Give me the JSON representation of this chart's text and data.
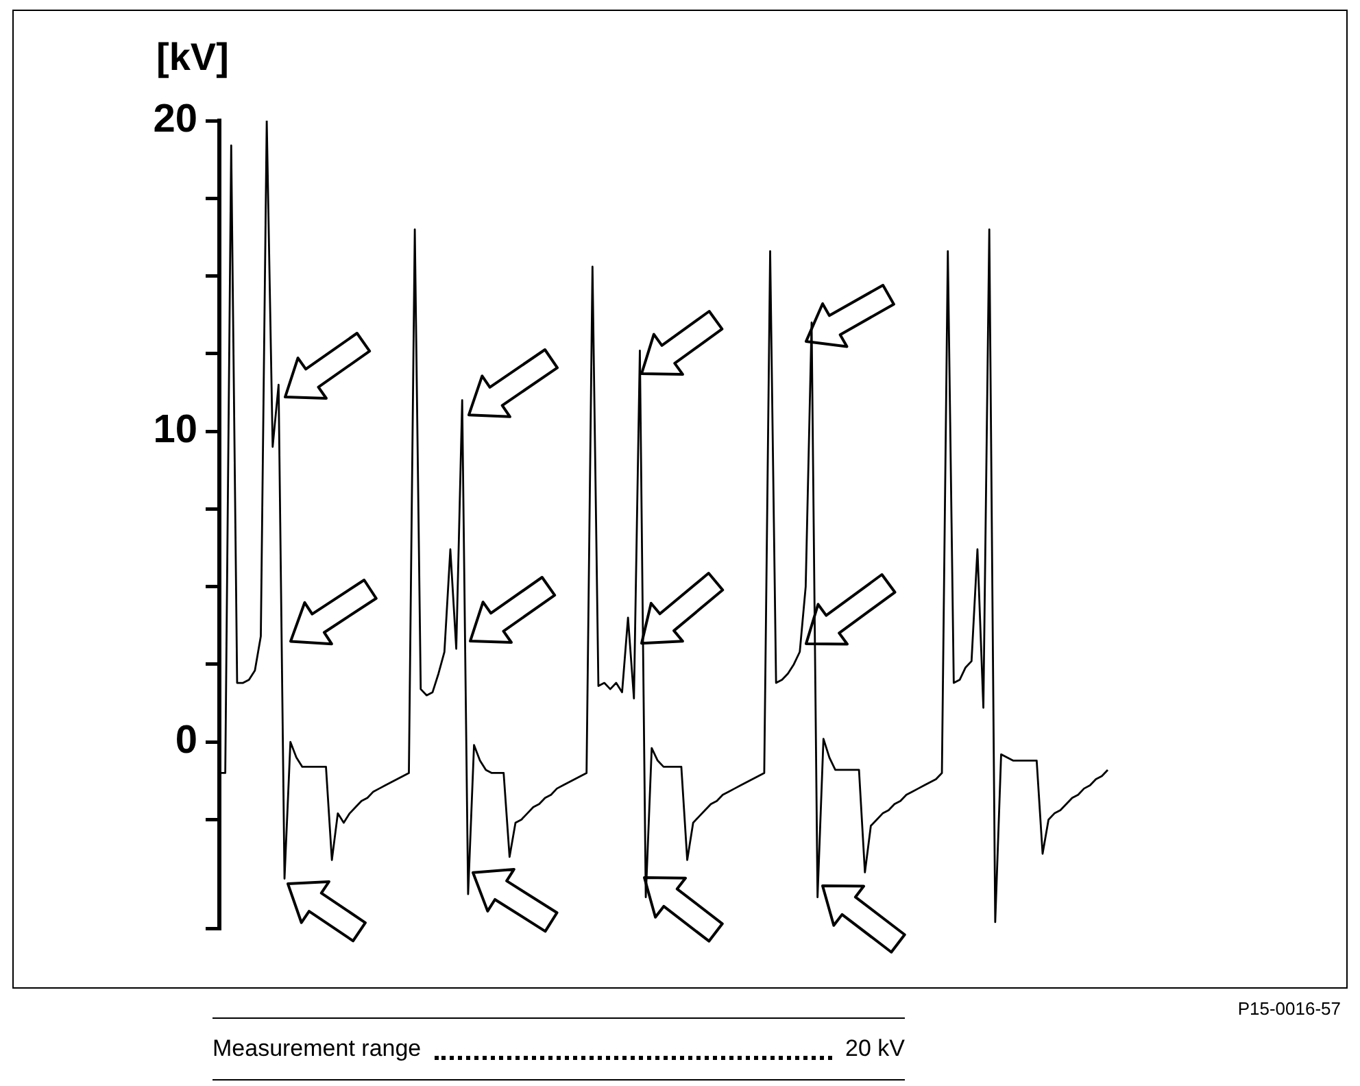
{
  "chart_data": {
    "type": "line",
    "ylabel": "[kV]",
    "categories": [
      null,
      null,
      null,
      null,
      null,
      null,
      null,
      null,
      null,
      null,
      null,
      null,
      null,
      null,
      null,
      null,
      null,
      null,
      null,
      null,
      null,
      null,
      null,
      null,
      null,
      null,
      null,
      null,
      null,
      null,
      null,
      null,
      null,
      null,
      null,
      null,
      null,
      null,
      null,
      null,
      null,
      null,
      null,
      null,
      null,
      null,
      null,
      null,
      null,
      null,
      null,
      null,
      null,
      null,
      null,
      null,
      null,
      null,
      null,
      null,
      null,
      null,
      null,
      null,
      null,
      null,
      null,
      null,
      null,
      null,
      null,
      null,
      null,
      null,
      null,
      null,
      null,
      null,
      null,
      null,
      null,
      null,
      null,
      null,
      null,
      null,
      null,
      null,
      null,
      null,
      null,
      null,
      null,
      null,
      null,
      null,
      null,
      null,
      null,
      null,
      null,
      null,
      null,
      null,
      null,
      null,
      null,
      null,
      null,
      null,
      null,
      null,
      null,
      null,
      null,
      null,
      null,
      null,
      null,
      null,
      null,
      null,
      null,
      null,
      null,
      null,
      null,
      null,
      null,
      null,
      null,
      null,
      null,
      null,
      null,
      null,
      null,
      null,
      null,
      null,
      null,
      null,
      null,
      null,
      null,
      null,
      null,
      null,
      null,
      null,
      null
    ],
    "series": [
      {
        "color": "#000000",
        "values": [
          -1.0,
          -1.0,
          19.2,
          1.9,
          1.9,
          2.0,
          2.3,
          3.4,
          20.0,
          9.5,
          11.5,
          -4.4,
          0.0,
          -0.5,
          -0.8,
          -0.8,
          -0.8,
          -0.8,
          -0.8,
          -3.8,
          -2.3,
          -2.6,
          -2.3,
          -2.1,
          -1.9,
          -1.8,
          -1.6,
          -1.5,
          -1.4,
          -1.3,
          -1.2,
          -1.1,
          -1.0,
          16.5,
          1.7,
          1.5,
          1.6,
          2.2,
          2.9,
          6.2,
          3.0,
          11.0,
          -4.9,
          -0.1,
          -0.6,
          -0.9,
          -1.0,
          -1.0,
          -1.0,
          -3.7,
          -2.6,
          -2.5,
          -2.3,
          -2.1,
          -2.0,
          -1.8,
          -1.7,
          -1.5,
          -1.4,
          -1.3,
          -1.2,
          -1.1,
          -1.0,
          15.3,
          1.8,
          1.9,
          1.7,
          1.9,
          1.6,
          4.0,
          1.4,
          12.6,
          -5.0,
          -0.2,
          -0.6,
          -0.8,
          -0.8,
          -0.8,
          -0.8,
          -3.8,
          -2.6,
          -2.4,
          -2.2,
          -2.0,
          -1.9,
          -1.7,
          -1.6,
          -1.5,
          -1.4,
          -1.3,
          -1.2,
          -1.1,
          -1.0,
          15.8,
          1.9,
          2.0,
          2.2,
          2.5,
          2.9,
          5.0,
          13.5,
          -5.0,
          0.1,
          -0.5,
          -0.9,
          -0.9,
          -0.9,
          -0.9,
          -0.9,
          -4.2,
          -2.7,
          -2.5,
          -2.3,
          -2.2,
          -2.0,
          -1.9,
          -1.7,
          -1.6,
          -1.5,
          -1.4,
          -1.3,
          -1.2,
          -1.0,
          15.8,
          1.9,
          2.0,
          2.4,
          2.6,
          6.2,
          1.1,
          16.5,
          -5.8,
          -0.4,
          -0.5,
          -0.6,
          -0.6,
          -0.6,
          -0.6,
          -0.6,
          -3.6,
          -2.5,
          -2.3,
          -2.2,
          -2.0,
          -1.8,
          -1.7,
          -1.5,
          -1.4,
          -1.2,
          -1.1,
          -0.9
        ]
      }
    ],
    "ylim": [
      -6,
      20
    ],
    "yticks": [
      {
        "value": -6,
        "label": null
      },
      {
        "value": -2.5,
        "label": null
      },
      0,
      {
        "value": 2.5,
        "label": null
      },
      {
        "value": 5,
        "label": null
      },
      {
        "value": 7.5,
        "label": null
      },
      10,
      {
        "value": 12.5,
        "label": null
      },
      {
        "value": 15,
        "label": null
      },
      {
        "value": 17.5,
        "label": null
      },
      20
    ],
    "tick_labels": "y",
    "annotations": [
      "P15-0016-57",
      "Measurement range",
      "20 kV"
    ]
  }
}
